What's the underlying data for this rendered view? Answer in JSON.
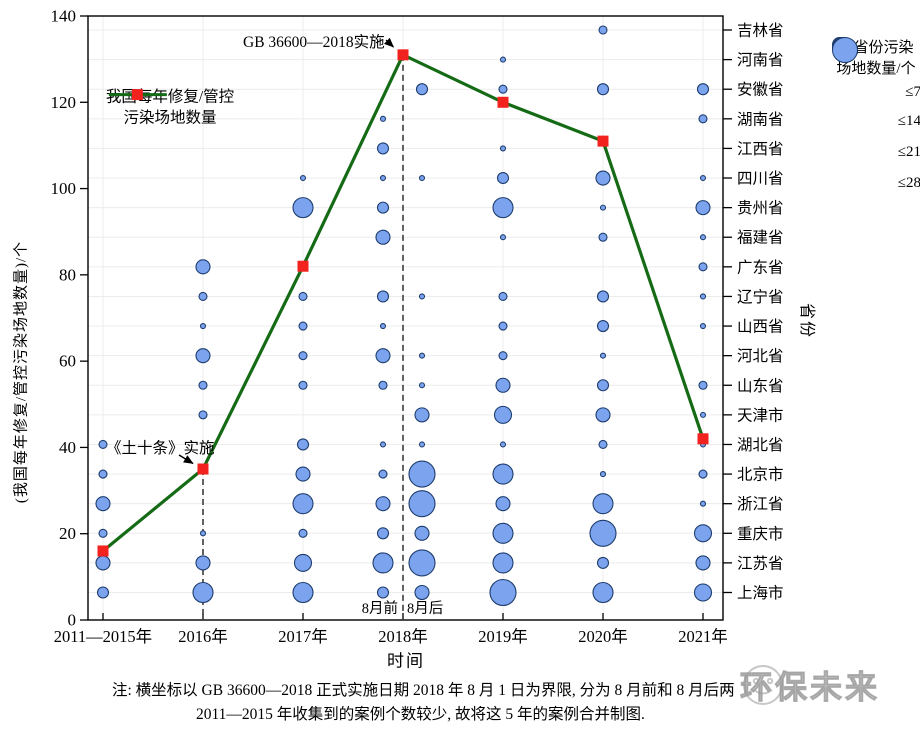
{
  "colors": {
    "bubble_fill": "#7BA3EE",
    "bubble_stroke": "#1E3D6E",
    "line_green": "#156B15",
    "marker_red": "#F2221F",
    "dash_gray": "#3C3C3C",
    "grid_gray": "#ECECEC",
    "axis_black": "#000000"
  },
  "left_axis": {
    "label": "(我国每年修复/管控污染场地数量)/个",
    "ticks": [
      0,
      20,
      40,
      60,
      80,
      100,
      120,
      140
    ]
  },
  "bottom_axis": {
    "label": "时间",
    "categories": [
      "2011—2015年",
      "2016年",
      "2017年",
      "2018年",
      "2019年",
      "2020年",
      "2021年"
    ]
  },
  "right_axis": {
    "label": "省份",
    "provinces": [
      "吉林省",
      "河南省",
      "安徽省",
      "湖南省",
      "江西省",
      "四川省",
      "贵州省",
      "福建省",
      "广东省",
      "辽宁省",
      "山西省",
      "河北省",
      "山东省",
      "天津市",
      "湖北省",
      "北京市",
      "浙江省",
      "重庆市",
      "江苏省",
      "上海市"
    ]
  },
  "line_legend": {
    "line1": "我国每年修复/管控",
    "line2": "污染场地数量"
  },
  "bubble_legend": {
    "title_line1": "各省份污染",
    "title_line2": "场地数量/个",
    "items": [
      {
        "label": "≤7",
        "r": 7
      },
      {
        "label": "≤14",
        "r": 9.5
      },
      {
        "label": "≤21",
        "r": 11
      },
      {
        "label": "≤28",
        "r": 12.5
      }
    ]
  },
  "annotations": {
    "gb": "GB 36600—2018实施",
    "tst": "《土十条》实施",
    "aug_before": "8月前",
    "aug_after": "8月后"
  },
  "note": {
    "line1": "注: 横坐标以 GB 36600—2018 正式实施日期 2018 年 8 月 1 日为界限, 分为 8 月前和 8 月后两",
    "line2": "2011—2015 年收集到的案例个数较少, 故将这 5 年的案例合并制图."
  },
  "watermark": {
    "text": "环保未来"
  },
  "chart_data": {
    "type": "line+bubble",
    "ylim": [
      0,
      140
    ],
    "yticks": [
      0,
      20,
      40,
      60,
      80,
      100,
      120,
      140
    ],
    "grid": "faint horizontal line per province row, faint vertical line per year",
    "line": {
      "name": "我国每年修复/管控污染场地数量",
      "categories": [
        "2011—2015年",
        "2016年",
        "2017年",
        "2018年",
        "2019年",
        "2020年",
        "2021年"
      ],
      "values": [
        16,
        35,
        82,
        131,
        120,
        111,
        42
      ],
      "marker": "red-square",
      "dashed_guides_at": [
        "2016年",
        "2018年"
      ]
    },
    "bubbles": {
      "note": "size level 1-7 maps to radius px; legend classes: 1-3≈≤7, 4≈≤14, 5-6≈≤21, 7≈≤28",
      "size_levels": {
        "1": 2.5,
        "2": 4,
        "3": 5.5,
        "4": 7,
        "5": 8.5,
        "6": 10,
        "7": 13
      },
      "provinces": [
        "吉林省",
        "河南省",
        "安徽省",
        "湖南省",
        "江西省",
        "四川省",
        "贵州省",
        "福建省",
        "广东省",
        "辽宁省",
        "山西省",
        "河北省",
        "山东省",
        "天津市",
        "湖北省",
        "北京市",
        "浙江省",
        "重庆市",
        "江苏省",
        "上海市"
      ],
      "columns": [
        {
          "label": "2011—2015年",
          "slot": 0,
          "sub": null,
          "points": [
            [
              "湖北省",
              2
            ],
            [
              "北京市",
              2
            ],
            [
              "浙江省",
              4
            ],
            [
              "重庆市",
              2
            ],
            [
              "江苏省",
              4
            ],
            [
              "上海市",
              3
            ]
          ]
        },
        {
          "label": "2016年",
          "slot": 1,
          "sub": null,
          "points": [
            [
              "广东省",
              4
            ],
            [
              "辽宁省",
              2
            ],
            [
              "山西省",
              1
            ],
            [
              "河北省",
              4
            ],
            [
              "山东省",
              2
            ],
            [
              "天津市",
              2
            ],
            [
              "重庆市",
              1
            ],
            [
              "江苏省",
              4
            ],
            [
              "上海市",
              6
            ]
          ]
        },
        {
          "label": "2017年",
          "slot": 2,
          "sub": null,
          "points": [
            [
              "四川省",
              1
            ],
            [
              "贵州省",
              6
            ],
            [
              "辽宁省",
              2
            ],
            [
              "山西省",
              2
            ],
            [
              "河北省",
              2
            ],
            [
              "山东省",
              2
            ],
            [
              "湖北省",
              3
            ],
            [
              "北京市",
              4
            ],
            [
              "浙江省",
              6
            ],
            [
              "重庆市",
              2
            ],
            [
              "江苏省",
              5
            ],
            [
              "上海市",
              6
            ]
          ]
        },
        {
          "label": "2018年 8月前",
          "slot": 3,
          "sub": "before",
          "points": [
            [
              "湖南省",
              1
            ],
            [
              "江西省",
              3
            ],
            [
              "四川省",
              1
            ],
            [
              "贵州省",
              3
            ],
            [
              "福建省",
              4
            ],
            [
              "辽宁省",
              3
            ],
            [
              "山西省",
              1
            ],
            [
              "河北省",
              4
            ],
            [
              "山东省",
              2
            ],
            [
              "湖北省",
              1
            ],
            [
              "北京市",
              2
            ],
            [
              "浙江省",
              4
            ],
            [
              "重庆市",
              3
            ],
            [
              "江苏省",
              6
            ],
            [
              "上海市",
              3
            ]
          ]
        },
        {
          "label": "2018年 8月后",
          "slot": 3,
          "sub": "after",
          "points": [
            [
              "安徽省",
              3
            ],
            [
              "四川省",
              1
            ],
            [
              "辽宁省",
              1
            ],
            [
              "河北省",
              1
            ],
            [
              "山东省",
              1
            ],
            [
              "天津市",
              4
            ],
            [
              "湖北省",
              1
            ],
            [
              "北京市",
              7
            ],
            [
              "浙江省",
              7
            ],
            [
              "重庆市",
              4
            ],
            [
              "江苏省",
              7
            ],
            [
              "上海市",
              4
            ]
          ]
        },
        {
          "label": "2019年",
          "slot": 4,
          "sub": null,
          "points": [
            [
              "河南省",
              1
            ],
            [
              "安徽省",
              2
            ],
            [
              "江西省",
              1
            ],
            [
              "四川省",
              3
            ],
            [
              "贵州省",
              6
            ],
            [
              "福建省",
              1
            ],
            [
              "辽宁省",
              2
            ],
            [
              "山西省",
              2
            ],
            [
              "河北省",
              2
            ],
            [
              "山东省",
              4
            ],
            [
              "天津市",
              5
            ],
            [
              "湖北省",
              1
            ],
            [
              "北京市",
              6
            ],
            [
              "浙江省",
              4
            ],
            [
              "重庆市",
              6
            ],
            [
              "江苏省",
              6
            ],
            [
              "上海市",
              7
            ]
          ]
        },
        {
          "label": "2020年",
          "slot": 5,
          "sub": null,
          "points": [
            [
              "吉林省",
              2
            ],
            [
              "安徽省",
              3
            ],
            [
              "四川省",
              4
            ],
            [
              "贵州省",
              1
            ],
            [
              "福建省",
              2
            ],
            [
              "辽宁省",
              3
            ],
            [
              "山西省",
              3
            ],
            [
              "河北省",
              1
            ],
            [
              "山东省",
              3
            ],
            [
              "天津市",
              4
            ],
            [
              "湖北省",
              2
            ],
            [
              "北京市",
              1
            ],
            [
              "浙江省",
              6
            ],
            [
              "重庆市",
              7
            ],
            [
              "江苏省",
              3
            ],
            [
              "上海市",
              6
            ]
          ]
        },
        {
          "label": "2021年",
          "slot": 6,
          "sub": null,
          "points": [
            [
              "安徽省",
              3
            ],
            [
              "湖南省",
              2
            ],
            [
              "四川省",
              1
            ],
            [
              "贵州省",
              4
            ],
            [
              "福建省",
              1
            ],
            [
              "广东省",
              2
            ],
            [
              "辽宁省",
              1
            ],
            [
              "山西省",
              1
            ],
            [
              "山东省",
              2
            ],
            [
              "天津市",
              1
            ],
            [
              "湖北省",
              1
            ],
            [
              "北京市",
              2
            ],
            [
              "浙江省",
              1
            ],
            [
              "重庆市",
              5
            ],
            [
              "江苏省",
              4
            ],
            [
              "上海市",
              5
            ]
          ]
        }
      ]
    }
  }
}
